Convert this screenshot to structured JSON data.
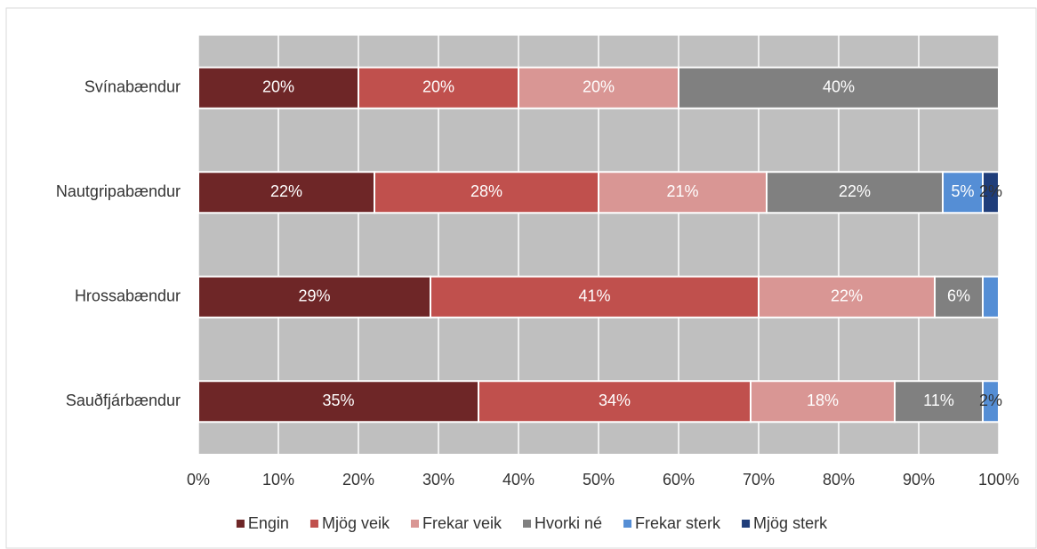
{
  "chart_data": {
    "type": "stacked-bar-horizontal",
    "categories": [
      "Svínabændur",
      "Nautgripabændur",
      "Hrossabændur",
      "Sauðfjárbændur"
    ],
    "series": [
      {
        "name": "Engin",
        "color": "#6e2627",
        "values": [
          20,
          22,
          29,
          35
        ],
        "value_labels": [
          "20%",
          "22%",
          "29%",
          "35%"
        ]
      },
      {
        "name": "Mjög veik",
        "color": "#c0504d",
        "values": [
          20,
          28,
          41,
          34
        ],
        "value_labels": [
          "20%",
          "28%",
          "41%",
          "34%"
        ]
      },
      {
        "name": "Frekar veik",
        "color": "#d99694",
        "values": [
          20,
          21,
          22,
          18
        ],
        "value_labels": [
          "20%",
          "21%",
          "22%",
          "18%"
        ]
      },
      {
        "name": "Hvorki né",
        "color": "#808080",
        "values": [
          40,
          22,
          6,
          11
        ],
        "value_labels": [
          "40%",
          "22%",
          "6%",
          "11%"
        ]
      },
      {
        "name": "Frekar sterk",
        "color": "#558ed5",
        "values": [
          null,
          5,
          2,
          2
        ],
        "value_labels": [
          null,
          "5%",
          null,
          "2%"
        ]
      },
      {
        "name": "Mjög sterk",
        "color": "#1f3d7a",
        "values": [
          null,
          2,
          null,
          null
        ],
        "value_labels": [
          null,
          "2%",
          null,
          null
        ]
      }
    ],
    "xlim": [
      0,
      100
    ],
    "xticks": [
      {
        "value": 0,
        "label": "0%"
      },
      {
        "value": 10,
        "label": "10%"
      },
      {
        "value": 20,
        "label": "20%"
      },
      {
        "value": 30,
        "label": "30%"
      },
      {
        "value": 40,
        "label": "40%"
      },
      {
        "value": 50,
        "label": "50%"
      },
      {
        "value": 60,
        "label": "60%"
      },
      {
        "value": 70,
        "label": "70%"
      },
      {
        "value": 80,
        "label": "80%"
      },
      {
        "value": 90,
        "label": "90%"
      },
      {
        "value": 100,
        "label": "100%"
      }
    ],
    "grid": true,
    "legend": "bottom"
  }
}
